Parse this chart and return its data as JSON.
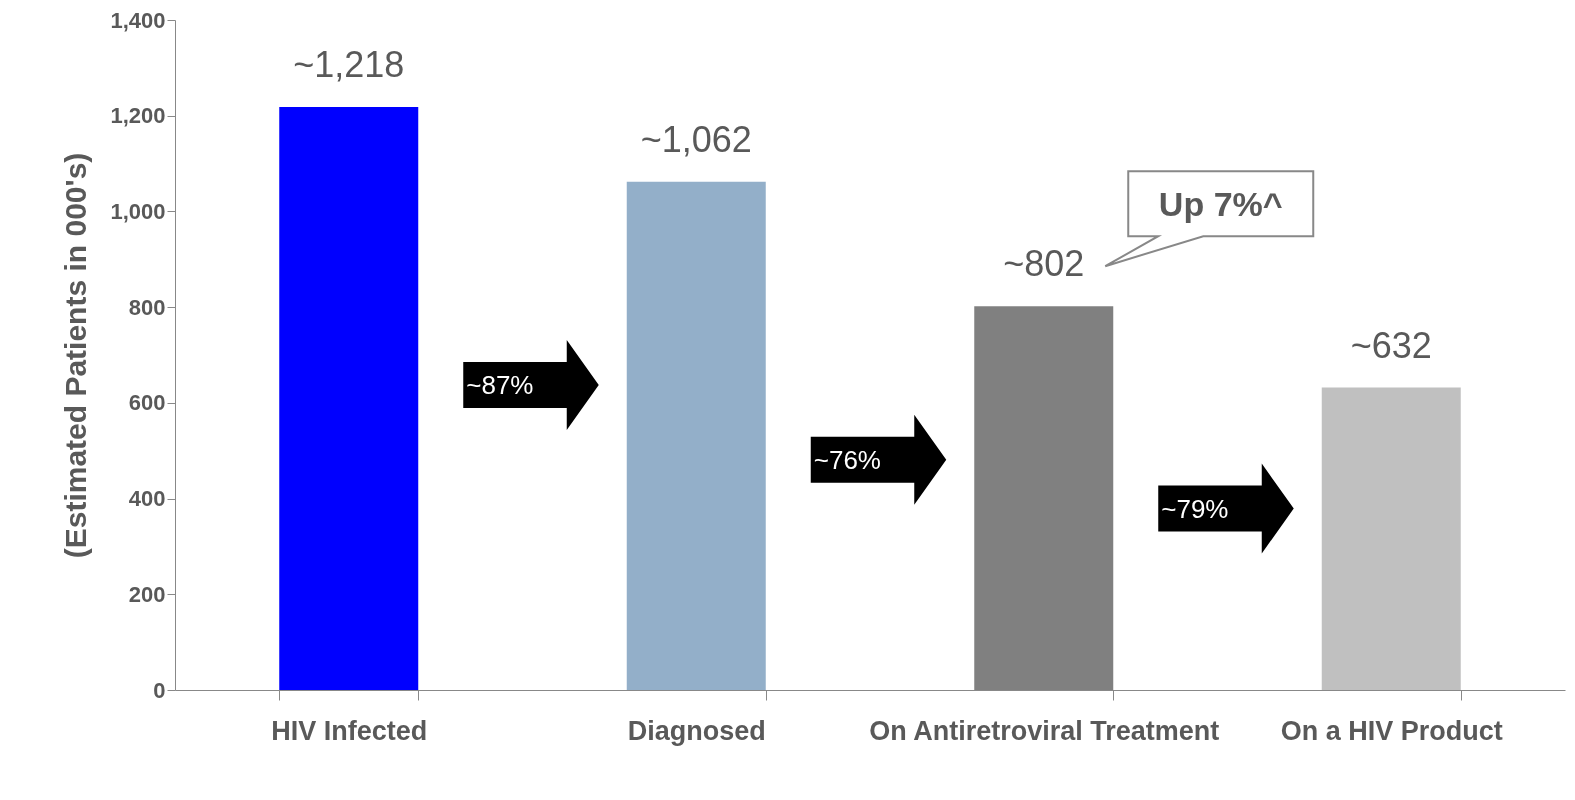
{
  "chart_data": {
    "type": "bar",
    "ylabel": "(Estimated Patients in 000's)",
    "categories": [
      "HIV Infected",
      "Diagnosed",
      "On Antiretroviral Treatment",
      "On a HIV Product"
    ],
    "values": [
      1218,
      1062,
      802,
      632
    ],
    "colors": [
      "#0000ff",
      "#93afc9",
      "#808080",
      "#c0c0c0"
    ],
    "value_labels": [
      "~1,218",
      "~1,062",
      "~802",
      "~632"
    ],
    "ylim": [
      0,
      1400
    ],
    "yticks": [
      0,
      200,
      400,
      600,
      800,
      {
        "value": 1000,
        "label": "1,000"
      },
      {
        "value": 1200,
        "label": "1,200"
      },
      {
        "value": 1400,
        "label": "1,400"
      }
    ],
    "grid": false,
    "annotations": [
      "~87%",
      "~76%",
      "~79%",
      "Up 7%^"
    ]
  }
}
